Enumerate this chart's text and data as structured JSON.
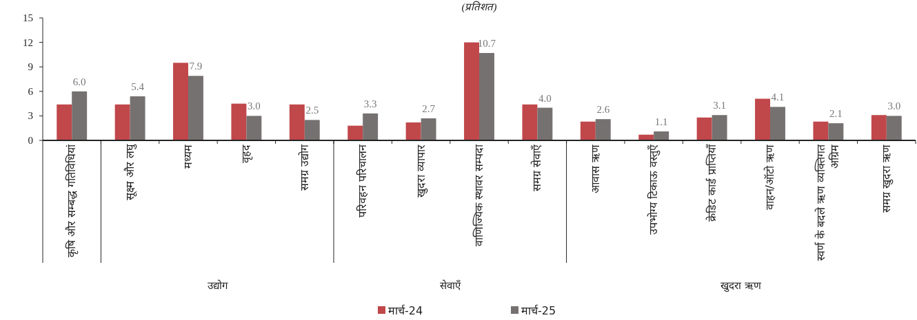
{
  "chart_data": {
    "type": "bar",
    "title": "(प्रतिशत)",
    "categories": [
      "कृषि और सम्बद्ध गतिविधियां",
      "सूक्ष्म और लघु",
      "मध्यम",
      "वृहद",
      "समग्र उद्योग",
      "परिवहन परिचालन",
      "खुदरा व्यापार",
      "वाणिज्यिक स्थावर सम्पदा",
      "समग्र सेवाएँ",
      "आवास ऋण",
      "उपभोग्य टिकाऊ वस्तुएँ",
      "क्रेडिट कार्ड प्राप्तियाँ",
      "वाहन/ऑटो ऋण",
      "स्वर्ण के बदले ऋण व्यक्तिगत अग्रिम",
      "समग्र खुदरा ऋण"
    ],
    "series": [
      {
        "name": "मार्च-24",
        "color": "#c0474a",
        "values": [
          4.4,
          4.4,
          9.5,
          4.5,
          4.4,
          1.8,
          2.2,
          12.0,
          4.4,
          2.3,
          0.7,
          2.8,
          5.1,
          2.3,
          3.1
        ]
      },
      {
        "name": "मार्च-25",
        "color": "#767171",
        "values": [
          6.0,
          5.4,
          7.9,
          3.0,
          2.5,
          3.3,
          2.7,
          10.7,
          4.0,
          2.6,
          1.1,
          3.1,
          4.1,
          2.1,
          3.0
        ],
        "value_labels": [
          "6.0",
          "5.4",
          "7.9",
          "3.0",
          "2.5",
          "3.3",
          "2.7",
          "10.7",
          "4.0",
          "2.6",
          "1.1",
          "3.1",
          "4.1",
          "2.1",
          "3.0"
        ]
      }
    ],
    "ylim": [
      0,
      15
    ],
    "yticks": [
      0,
      3,
      6,
      9,
      12,
      15
    ],
    "annotations": [
      "उद्योग",
      "सेवाएँ",
      "खुदरा ऋण"
    ],
    "legend": "bottom"
  }
}
